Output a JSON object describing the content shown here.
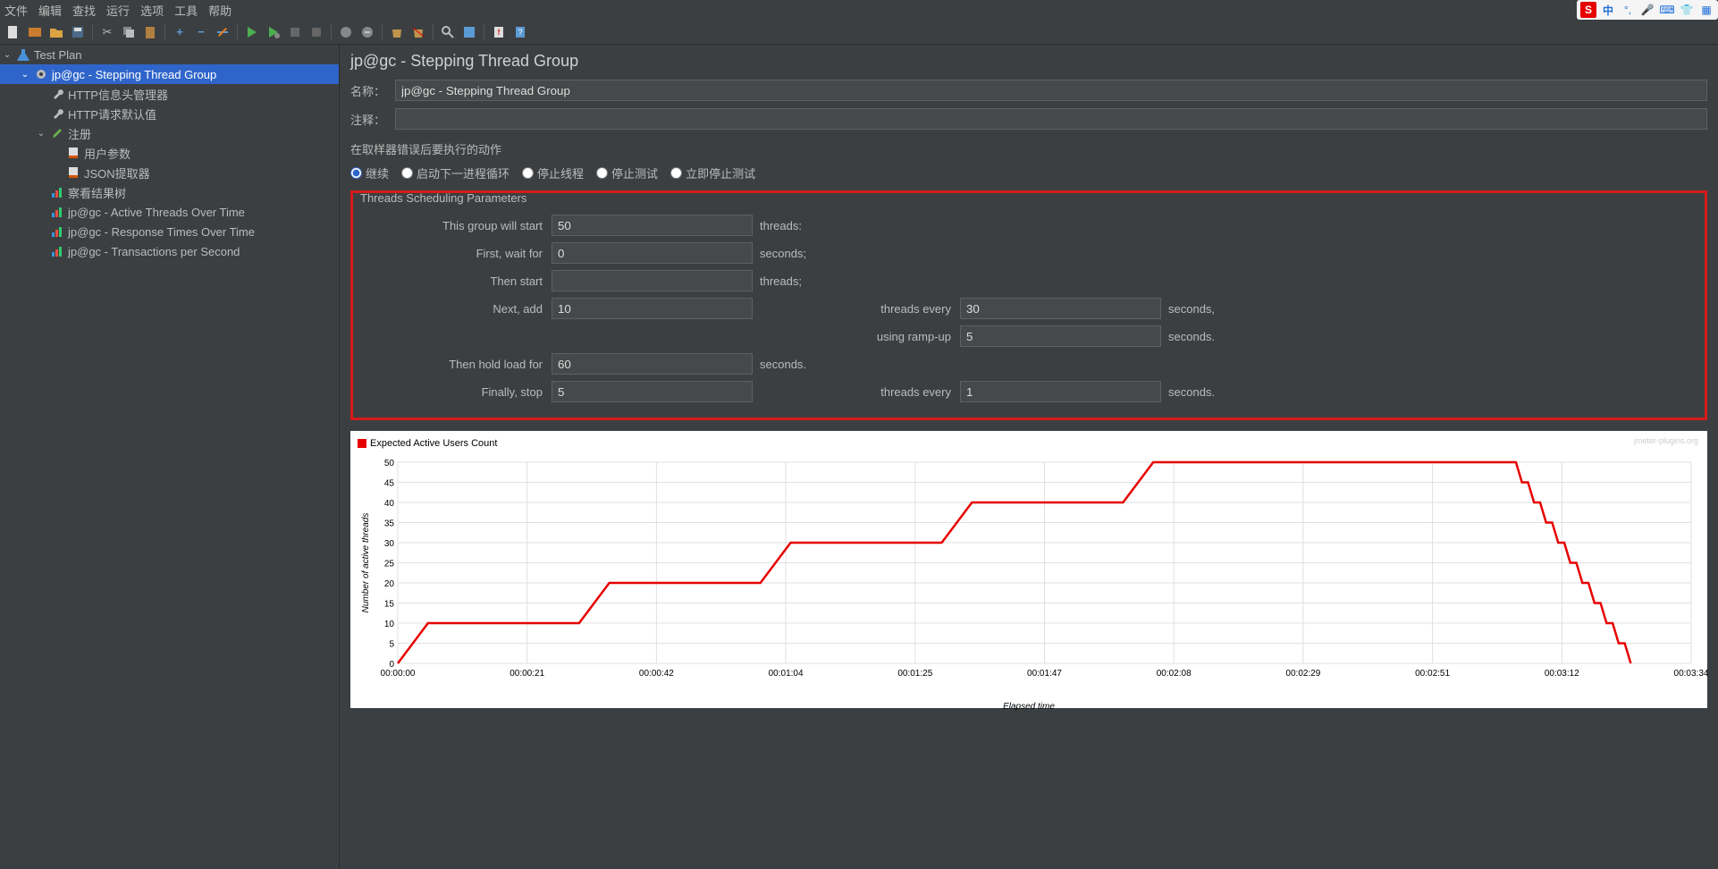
{
  "menubar": [
    "文件",
    "编辑",
    "查找",
    "运行",
    "选项",
    "工具",
    "帮助"
  ],
  "tree": {
    "root": "Test Plan",
    "items": [
      {
        "label": "jp@gc - Stepping Thread Group",
        "indent": 1,
        "caret": "v",
        "icon": "gear",
        "selected": true
      },
      {
        "label": "HTTP信息头管理器",
        "indent": 2,
        "icon": "wrench"
      },
      {
        "label": "HTTP请求默认值",
        "indent": 2,
        "icon": "wrench"
      },
      {
        "label": "注册",
        "indent": 2,
        "caret": "v",
        "icon": "pipette"
      },
      {
        "label": "用户参数",
        "indent": 3,
        "icon": "doc"
      },
      {
        "label": "JSON提取器",
        "indent": 3,
        "icon": "doc"
      },
      {
        "label": "察看结果树",
        "indent": 2,
        "icon": "chart-s"
      },
      {
        "label": "jp@gc - Active Threads Over Time",
        "indent": 2,
        "icon": "chart-s"
      },
      {
        "label": "jp@gc - Response Times Over Time",
        "indent": 2,
        "icon": "chart-s"
      },
      {
        "label": "jp@gc - Transactions per Second",
        "indent": 2,
        "icon": "chart-s"
      }
    ]
  },
  "panel": {
    "title": "jp@gc - Stepping Thread Group",
    "name_label": "名称：",
    "name_value": "jp@gc - Stepping Thread Group",
    "comment_label": "注释：",
    "comment_value": "",
    "error_section": "在取样器错误后要执行的动作",
    "radios": [
      "继续",
      "启动下一进程循环",
      "停止线程",
      "停止测试",
      "立即停止测试"
    ],
    "radio_selected": 0
  },
  "params": {
    "box_title": "Threads Scheduling Parameters",
    "rows": [
      {
        "l1": "This group will start",
        "v1": "50",
        "u1": "threads:"
      },
      {
        "l1": "First, wait for",
        "v1": "0",
        "u1": "seconds;"
      },
      {
        "l1": "Then start",
        "v1": "",
        "u1": "threads;"
      },
      {
        "l1": "Next, add",
        "v1": "10",
        "u1": "",
        "l2": "threads every",
        "v2": "30",
        "u2": "seconds,"
      },
      {
        "l1": "",
        "v1": "",
        "u1": "",
        "l2": "using ramp-up",
        "v2": "5",
        "u2": "seconds.",
        "skip1": true
      },
      {
        "l1": "Then hold load for",
        "v1": "60",
        "u1": "seconds."
      },
      {
        "l1": "Finally, stop",
        "v1": "5",
        "u1": "",
        "l2": "threads every",
        "v2": "1",
        "u2": "seconds."
      }
    ]
  },
  "chart": {
    "legend": "Expected Active Users Count",
    "watermark": "jmeter-plugins.org",
    "ylabel": "Number of active threads",
    "xlabel": "Elapsed time",
    "ymax": 50,
    "ytick_step": 5,
    "xticks": [
      "00:00:00",
      "00:00:21",
      "00:00:42",
      "00:01:04",
      "00:01:25",
      "00:01:47",
      "00:02:08",
      "00:02:29",
      "00:02:51",
      "00:03:12",
      "00:03:34"
    ],
    "line_color": "#e60000",
    "grid_color": "#e0e0e0",
    "background": "#ffffff",
    "points": [
      [
        0,
        0
      ],
      [
        5,
        10
      ],
      [
        30,
        10
      ],
      [
        35,
        20
      ],
      [
        60,
        20
      ],
      [
        65,
        30
      ],
      [
        90,
        30
      ],
      [
        95,
        40
      ],
      [
        120,
        40
      ],
      [
        125,
        50
      ],
      [
        185,
        50
      ],
      [
        186,
        45
      ],
      [
        187,
        45
      ],
      [
        188,
        40
      ],
      [
        189,
        40
      ],
      [
        190,
        35
      ],
      [
        191,
        35
      ],
      [
        192,
        30
      ],
      [
        193,
        30
      ],
      [
        194,
        25
      ],
      [
        195,
        25
      ],
      [
        196,
        20
      ],
      [
        197,
        20
      ],
      [
        198,
        15
      ],
      [
        199,
        15
      ],
      [
        200,
        10
      ],
      [
        201,
        10
      ],
      [
        202,
        5
      ],
      [
        203,
        5
      ],
      [
        204,
        0
      ]
    ],
    "xmax": 214
  }
}
